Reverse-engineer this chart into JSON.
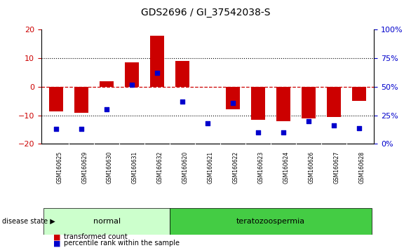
{
  "title": "GDS2696 / GI_37542038-S",
  "samples": [
    "GSM160625",
    "GSM160629",
    "GSM160630",
    "GSM160631",
    "GSM160632",
    "GSM160620",
    "GSM160621",
    "GSM160622",
    "GSM160623",
    "GSM160624",
    "GSM160626",
    "GSM160627",
    "GSM160628"
  ],
  "transformed_count": [
    -8.5,
    -9.0,
    2.0,
    8.5,
    18.0,
    9.0,
    0.0,
    -8.0,
    -11.5,
    -12.0,
    -11.0,
    -10.5,
    -5.0
  ],
  "percentile_rank": [
    13,
    13,
    30,
    52,
    62,
    37,
    18,
    36,
    10,
    10,
    20,
    16,
    14
  ],
  "disease_group": [
    "normal",
    "normal",
    "normal",
    "normal",
    "normal",
    "teratozoospermia",
    "teratozoospermia",
    "teratozoospermia",
    "teratozoospermia",
    "teratozoospermia",
    "teratozoospermia",
    "teratozoospermia",
    "teratozoospermia"
  ],
  "ylim": [
    -20,
    20
  ],
  "yticks_left": [
    -20,
    -10,
    0,
    10,
    20
  ],
  "yticks_right_vals": [
    0,
    25,
    50,
    75,
    100
  ],
  "bar_color": "#CC0000",
  "dot_color": "#0000CC",
  "zero_line_color": "#CC0000",
  "grid_color": "#000000",
  "normal_color": "#CCFFCC",
  "terato_color": "#44CC44",
  "bg_color": "#C8C8C8",
  "legend_bar_label": "transformed count",
  "legend_dot_label": "percentile rank within the sample",
  "ylabel_left_color": "#CC0000",
  "ylabel_right_color": "#0000CC"
}
